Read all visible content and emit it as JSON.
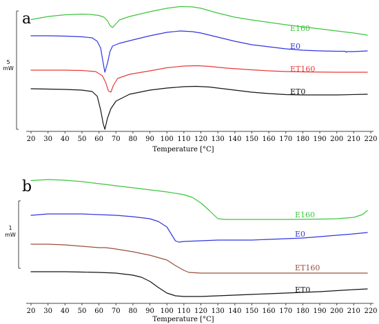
{
  "chart_data": [
    {
      "type": "line",
      "panel_letter": "a",
      "xlabel": "Temperature [°C]",
      "ylabel": "",
      "xlim": [
        20,
        220
      ],
      "x_ticks": [
        20,
        30,
        40,
        50,
        60,
        70,
        80,
        90,
        100,
        110,
        120,
        130,
        140,
        150,
        160,
        170,
        180,
        190,
        200,
        210,
        220
      ],
      "scale_bar": {
        "value": "5",
        "unit": "mW"
      },
      "grid": false,
      "series": [
        {
          "name": "E160",
          "color": "#3cc43c",
          "points": [
            [
              20,
              28.5
            ],
            [
              30,
              24
            ],
            [
              40,
              21.5
            ],
            [
              50,
              20.5
            ],
            [
              55,
              21
            ],
            [
              60,
              22.5
            ],
            [
              63,
              25
            ],
            [
              65,
              30
            ],
            [
              66.5,
              37
            ],
            [
              68,
              40
            ],
            [
              69.5,
              36
            ],
            [
              72,
              29
            ],
            [
              78,
              24
            ],
            [
              90,
              17
            ],
            [
              100,
              12
            ],
            [
              108,
              9.5
            ],
            [
              115,
              10
            ],
            [
              120,
              12
            ],
            [
              130,
              19
            ],
            [
              140,
              25
            ],
            [
              150,
              29
            ],
            [
              160,
              32.5
            ],
            [
              170,
              36
            ],
            [
              180,
              39
            ],
            [
              190,
              42
            ],
            [
              200,
              45
            ],
            [
              210,
              48
            ],
            [
              218,
              51
            ]
          ]
        },
        {
          "name": "E0",
          "color": "#2f34e0",
          "points": [
            [
              20,
              52
            ],
            [
              30,
              52
            ],
            [
              40,
              52.5
            ],
            [
              50,
              53.5
            ],
            [
              56,
              55
            ],
            [
              59,
              60
            ],
            [
              61,
              70
            ],
            [
              62.5,
              92
            ],
            [
              63.5,
              105
            ],
            [
              65,
              92
            ],
            [
              66.5,
              75
            ],
            [
              68,
              67
            ],
            [
              72,
              63
            ],
            [
              80,
              58
            ],
            [
              90,
              52
            ],
            [
              100,
              47
            ],
            [
              108,
              45
            ],
            [
              115,
              46
            ],
            [
              120,
              48
            ],
            [
              130,
              54
            ],
            [
              140,
              60
            ],
            [
              150,
              65
            ],
            [
              160,
              68
            ],
            [
              170,
              71
            ],
            [
              180,
              73
            ],
            [
              190,
              74
            ],
            [
              200,
              74.5
            ],
            [
              205,
              74.5
            ],
            [
              205.5,
              76
            ],
            [
              206,
              75
            ],
            [
              210,
              75
            ],
            [
              218,
              74
            ]
          ]
        },
        {
          "name": "ET160",
          "color": "#e6383a",
          "points": [
            [
              20,
              102
            ],
            [
              30,
              102
            ],
            [
              40,
              102
            ],
            [
              50,
              102.5
            ],
            [
              58,
              104
            ],
            [
              62,
              110
            ],
            [
              64,
              120
            ],
            [
              65.5,
              132
            ],
            [
              67,
              134
            ],
            [
              68.5,
              124
            ],
            [
              71,
              114
            ],
            [
              78,
              108
            ],
            [
              90,
              103
            ],
            [
              100,
              98.5
            ],
            [
              110,
              96
            ],
            [
              118,
              95.5
            ],
            [
              125,
              96.5
            ],
            [
              135,
              99
            ],
            [
              150,
              101.5
            ],
            [
              160,
              103
            ],
            [
              170,
              104
            ],
            [
              180,
              104.5
            ],
            [
              200,
              105
            ],
            [
              218,
              105
            ]
          ]
        },
        {
          "name": "ET0",
          "color": "#111111",
          "points": [
            [
              20,
              129
            ],
            [
              30,
              129.5
            ],
            [
              40,
              130
            ],
            [
              50,
              131
            ],
            [
              56,
              133
            ],
            [
              59,
              140
            ],
            [
              61,
              160
            ],
            [
              62.5,
              180
            ],
            [
              63.5,
              188
            ],
            [
              65,
              172
            ],
            [
              67,
              158
            ],
            [
              70,
              147
            ],
            [
              78,
              137
            ],
            [
              90,
              131
            ],
            [
              100,
              128
            ],
            [
              110,
              126
            ],
            [
              117,
              125.5
            ],
            [
              125,
              126.5
            ],
            [
              135,
              129.5
            ],
            [
              150,
              134
            ],
            [
              160,
              136
            ],
            [
              170,
              137.5
            ],
            [
              180,
              138
            ],
            [
              200,
              138
            ],
            [
              218,
              137
            ]
          ]
        }
      ]
    },
    {
      "type": "line",
      "panel_letter": "b",
      "xlabel": "Temperature [°C]",
      "ylabel": "",
      "xlim": [
        20,
        220
      ],
      "x_ticks": [
        20,
        30,
        40,
        50,
        60,
        70,
        80,
        90,
        100,
        110,
        120,
        130,
        140,
        150,
        160,
        170,
        180,
        190,
        200,
        210,
        220
      ],
      "scale_bar": {
        "value": "1",
        "unit": "mW"
      },
      "grid": false,
      "series": [
        {
          "name": "E160",
          "color": "#3cc43c",
          "points": [
            [
              20,
              262.5
            ],
            [
              30,
              261
            ],
            [
              40,
              262
            ],
            [
              50,
              264
            ],
            [
              60,
              267
            ],
            [
              70,
              270
            ],
            [
              80,
              273
            ],
            [
              90,
              276
            ],
            [
              100,
              279
            ],
            [
              110,
              283
            ],
            [
              115,
              287
            ],
            [
              120,
              295
            ],
            [
              125,
              306
            ],
            [
              130,
              318
            ],
            [
              135,
              319
            ],
            [
              150,
              319
            ],
            [
              170,
              319
            ],
            [
              190,
              318.5
            ],
            [
              200,
              318
            ],
            [
              210,
              316
            ],
            [
              215,
              312
            ],
            [
              218,
              306
            ]
          ]
        },
        {
          "name": "E0",
          "color": "#2f34e0",
          "points": [
            [
              20,
              313
            ],
            [
              30,
              311
            ],
            [
              40,
              311
            ],
            [
              50,
              311
            ],
            [
              60,
              312
            ],
            [
              70,
              313
            ],
            [
              80,
              315
            ],
            [
              90,
              318
            ],
            [
              95,
              322
            ],
            [
              100,
              330
            ],
            [
              103,
              342
            ],
            [
              105,
              350
            ],
            [
              107,
              352
            ],
            [
              110,
              351
            ],
            [
              120,
              350
            ],
            [
              130,
              349
            ],
            [
              140,
              349
            ],
            [
              150,
              349
            ],
            [
              160,
              348
            ],
            [
              170,
              347
            ],
            [
              180,
              346
            ],
            [
              190,
              344
            ],
            [
              200,
              342
            ],
            [
              210,
              340
            ],
            [
              218,
              338
            ]
          ]
        },
        {
          "name": "ET160",
          "color": "#9a4d3c",
          "points": [
            [
              20,
              355
            ],
            [
              30,
              355
            ],
            [
              40,
              356
            ],
            [
              50,
              358
            ],
            [
              60,
              360
            ],
            [
              64,
              360
            ],
            [
              70,
              362
            ],
            [
              80,
              366
            ],
            [
              90,
              371
            ],
            [
              100,
              378
            ],
            [
              105,
              386
            ],
            [
              110,
              393
            ],
            [
              113,
              396
            ],
            [
              120,
              397
            ],
            [
              140,
              397
            ],
            [
              170,
              397
            ],
            [
              200,
              397
            ],
            [
              218,
              397
            ]
          ]
        },
        {
          "name": "ET0",
          "color": "#111111",
          "points": [
            [
              20,
              395
            ],
            [
              30,
              395
            ],
            [
              40,
              395
            ],
            [
              50,
              395.5
            ],
            [
              60,
              396
            ],
            [
              70,
              397
            ],
            [
              80,
              400
            ],
            [
              85,
              403
            ],
            [
              90,
              409
            ],
            [
              95,
              418
            ],
            [
              100,
              426
            ],
            [
              105,
              430
            ],
            [
              110,
              431
            ],
            [
              120,
              431
            ],
            [
              130,
              430
            ],
            [
              140,
              429
            ],
            [
              150,
              428
            ],
            [
              160,
              427
            ],
            [
              170,
              426
            ],
            [
              180,
              425
            ],
            [
              190,
              424
            ],
            [
              200,
              422.5
            ],
            [
              210,
              421
            ],
            [
              218,
              420
            ]
          ]
        }
      ]
    }
  ]
}
